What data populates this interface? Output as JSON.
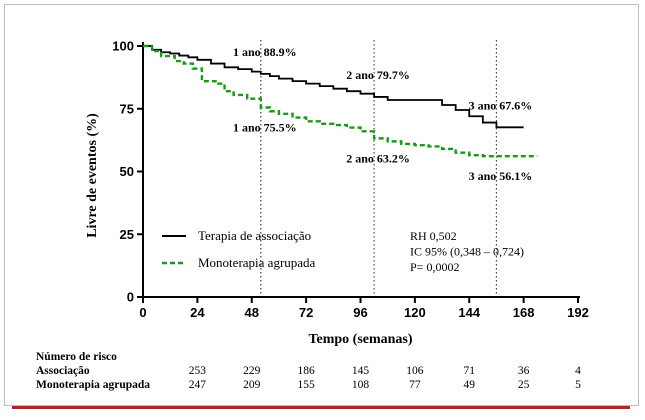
{
  "chart_data": {
    "type": "line",
    "xlabel": "Tempo (semanas)",
    "ylabel": "Livre de eventos (%)",
    "xlim": [
      0,
      192
    ],
    "ylim": [
      0,
      100
    ],
    "x_ticks": [
      0,
      24,
      48,
      72,
      96,
      120,
      144,
      168,
      192
    ],
    "y_ticks": [
      0,
      25,
      50,
      75,
      100
    ],
    "grid": false,
    "legend_position": "bottom-left",
    "series": [
      {
        "name": "Terapia de associação",
        "style": "solid",
        "color": "#000000",
        "points": [
          [
            0,
            100
          ],
          [
            4,
            98.5
          ],
          [
            8,
            97.5
          ],
          [
            12,
            97
          ],
          [
            16,
            96.2
          ],
          [
            20,
            95.5
          ],
          [
            24,
            94.5
          ],
          [
            30,
            93
          ],
          [
            36,
            91.5
          ],
          [
            42,
            90.8
          ],
          [
            48,
            89.8
          ],
          [
            52,
            88.9
          ],
          [
            56,
            88
          ],
          [
            60,
            87
          ],
          [
            66,
            86
          ],
          [
            72,
            85
          ],
          [
            78,
            84
          ],
          [
            84,
            83
          ],
          [
            90,
            82
          ],
          [
            96,
            81
          ],
          [
            102,
            79.7
          ],
          [
            108,
            78.5
          ],
          [
            114,
            78.5
          ],
          [
            120,
            78.5
          ],
          [
            126,
            78.5
          ],
          [
            132,
            76.5
          ],
          [
            138,
            74.5
          ],
          [
            144,
            72
          ],
          [
            150,
            69.5
          ],
          [
            156,
            67.6
          ],
          [
            168,
            67.6
          ]
        ]
      },
      {
        "name": "Monoterapia agrupada",
        "style": "dashed",
        "color": "#1a9a1a",
        "points": [
          [
            0,
            100
          ],
          [
            4,
            98
          ],
          [
            8,
            96
          ],
          [
            14,
            94
          ],
          [
            18,
            93
          ],
          [
            22,
            91
          ],
          [
            26,
            86
          ],
          [
            32,
            85
          ],
          [
            36,
            82
          ],
          [
            40,
            80.5
          ],
          [
            46,
            79
          ],
          [
            52,
            75.5
          ],
          [
            56,
            74
          ],
          [
            60,
            73
          ],
          [
            66,
            71.5
          ],
          [
            72,
            70
          ],
          [
            78,
            69
          ],
          [
            84,
            68.5
          ],
          [
            90,
            67.5
          ],
          [
            96,
            66
          ],
          [
            102,
            63.2
          ],
          [
            108,
            62
          ],
          [
            114,
            61
          ],
          [
            120,
            60.5
          ],
          [
            126,
            60
          ],
          [
            132,
            59
          ],
          [
            138,
            57.5
          ],
          [
            144,
            56.5
          ],
          [
            150,
            56.1
          ],
          [
            156,
            56.1
          ],
          [
            168,
            56.1
          ],
          [
            174,
            56.1
          ]
        ]
      }
    ],
    "vlines": [
      52,
      102,
      156
    ],
    "annotations": [
      {
        "text": "1 ano 88.9%",
        "x": 52,
        "y": 88.9,
        "pos": "above"
      },
      {
        "text": "2 ano 79.7%",
        "x": 102,
        "y": 79.7,
        "pos": "above"
      },
      {
        "text": "3 ano 67.6%",
        "x": 156,
        "y": 67.6,
        "pos": "above"
      },
      {
        "text": "1 ano 75.5%",
        "x": 52,
        "y": 75.5,
        "pos": "below"
      },
      {
        "text": "2 ano 63.2%",
        "x": 102,
        "y": 63.2,
        "pos": "below"
      },
      {
        "text": "3 ano 56.1%",
        "x": 156,
        "y": 56.1,
        "pos": "below"
      }
    ],
    "stats": [
      "RH 0,502",
      "IC 95% (0,348 – 0,724)",
      "P= 0,0002"
    ]
  },
  "risk_table": {
    "title": "Número de risco",
    "rows": [
      {
        "label": "Associação",
        "values": [
          "253",
          "229",
          "186",
          "145",
          "106",
          "71",
          "36",
          "4"
        ]
      },
      {
        "label": "Monoterapia agrupada",
        "values": [
          "247",
          "209",
          "155",
          "108",
          "77",
          "49",
          "25",
          "5"
        ]
      }
    ]
  }
}
